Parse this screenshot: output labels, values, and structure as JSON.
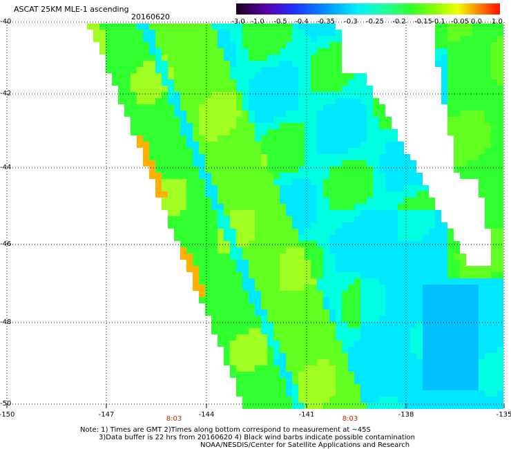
{
  "header": {
    "title": "ASCAT 25KM MLE-1 ascending",
    "date": "20160620"
  },
  "colorbar": {
    "labels": [
      "-3.0",
      "-1.0",
      "-0.5",
      "-0.4",
      "-0.35",
      "-0.3",
      "-0.25",
      "-0.2",
      "-0.15",
      "-0.1",
      "-0.05",
      "0.0",
      "1.0"
    ],
    "colors": [
      "#300030",
      "#5000a0",
      "#2020ff",
      "#0080ff",
      "#00c8ff",
      "#00ffff",
      "#20ff80",
      "#30ff30",
      "#70ff00",
      "#d0ff00",
      "#ffd000",
      "#ff7000",
      "#ff2000"
    ]
  },
  "map": {
    "y_axis_labels": [
      "-40",
      "-42",
      "-44",
      "-46",
      "-48",
      "-50"
    ],
    "x_axis_labels": [
      "-150",
      "-147",
      "-144",
      "-141",
      "-138",
      "-135"
    ],
    "time_labels": [
      "8:03",
      "8:03"
    ],
    "grid": "dotted",
    "swath_colors": {
      "green": "#30ff30",
      "lime": "#60ff20",
      "yellowgreen": "#a0ff20",
      "aqua": "#00ffe0",
      "cyan": "#00e8ff",
      "lightblue": "#00c0ff",
      "orange": "#ffb000",
      "yellow": "#e8ff00"
    }
  },
  "notes": {
    "line1": "Note: 1) Times are GMT 2)Times along bottom correspond to measurement at ~45S",
    "line2": "3)Data buffer is 22 hrs from 20160620 4) Black wind barbs indicate possible contamination",
    "line3": "NOAA/NESDIS/Center for Satellite Applications and Research"
  }
}
